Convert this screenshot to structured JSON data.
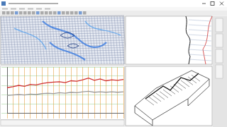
{
  "chart_data": {
    "type": "line",
    "categories": [
      null,
      null,
      null,
      null,
      null,
      null,
      null,
      null,
      null,
      null,
      null,
      null,
      null,
      null,
      null,
      null,
      null,
      null,
      null,
      null,
      null
    ],
    "series": [
      {
        "color": "#d03030",
        "values": [
          55,
          57,
          60,
          58,
          62,
          61,
          64,
          66,
          67,
          68,
          66,
          70,
          69,
          72,
          76,
          71,
          74,
          70,
          72,
          71,
          73
        ]
      },
      {
        "color": "#9a9a9a",
        "values": [
          38,
          39,
          40,
          39,
          41,
          40,
          42,
          43,
          42,
          44,
          43,
          45,
          44,
          46,
          47,
          45,
          46,
          45,
          46,
          45,
          46
        ]
      }
    ],
    "ylim": [
      0,
      100
    ],
    "yticks": [
      0,
      20,
      40,
      60,
      80,
      100
    ],
    "grid": true,
    "tick_labels": false
  }
}
